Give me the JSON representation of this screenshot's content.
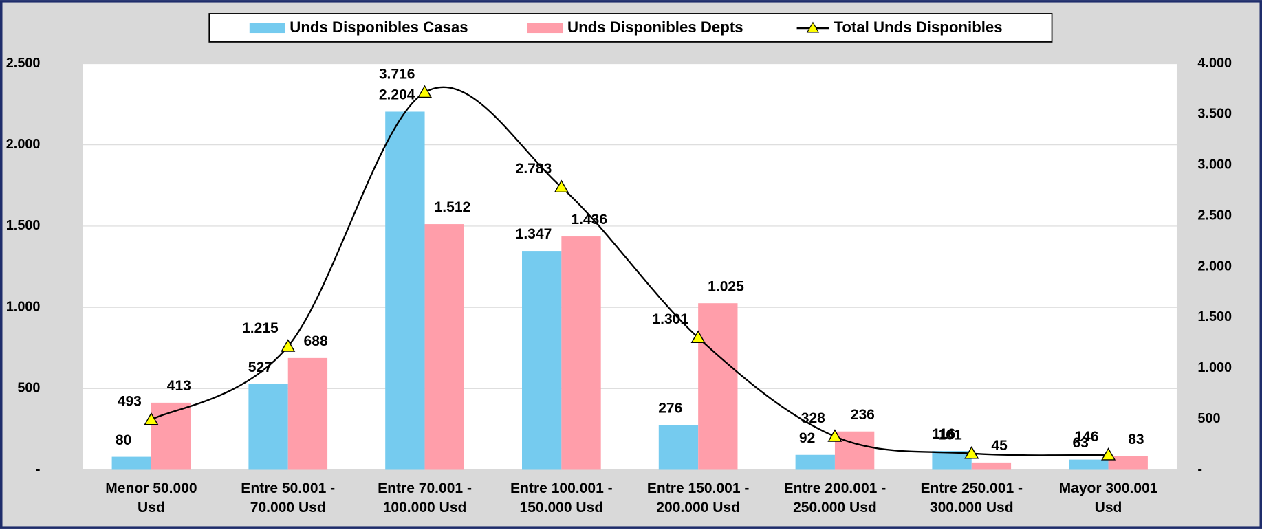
{
  "chart_data": {
    "type": "bar-line",
    "categories": [
      [
        "Menor 50.000",
        "Usd"
      ],
      [
        "Entre  50.001 -",
        "70.000 Usd"
      ],
      [
        "Entre  70.001 -",
        "100.000 Usd"
      ],
      [
        "Entre  100.001 -",
        "150.000 Usd"
      ],
      [
        "Entre 150.001 -",
        "200.000  Usd"
      ],
      [
        "Entre 200.001 -",
        "250.000  Usd"
      ],
      [
        "Entre 250.001 -",
        "300.000  Usd"
      ],
      [
        "Mayor  300.001",
        "Usd"
      ]
    ],
    "series": [
      {
        "name": "Unds Disponibles Casas",
        "type": "bar",
        "color": "#75cbef",
        "values": [
          80,
          527,
          2204,
          1347,
          276,
          92,
          116,
          63
        ],
        "value_labels": [
          "80",
          "527",
          "2.204",
          "1.347",
          "276",
          "92",
          "116",
          "63"
        ]
      },
      {
        "name": "Unds Disponibles Depts",
        "type": "bar",
        "color": "#ff9eaa",
        "values": [
          413,
          688,
          1512,
          1436,
          1025,
          236,
          45,
          83
        ],
        "value_labels": [
          "413",
          "688",
          "1.512",
          "1.436",
          "1.025",
          "236",
          "45",
          "83"
        ]
      },
      {
        "name": "Total Unds Disponibles",
        "type": "line",
        "axis": "y2",
        "color": "#000000",
        "marker_color": "#ffff00",
        "values": [
          493,
          1215,
          3716,
          2783,
          1301,
          328,
          161,
          146
        ],
        "value_labels": [
          "493",
          "1.215",
          "3.716",
          "2.783",
          "1.301",
          "328",
          "161",
          "146"
        ]
      }
    ],
    "ylim": [
      0,
      2500
    ],
    "yticks": [
      {
        "value": 0,
        "label": "-"
      },
      500,
      {
        "value": 1000,
        "label": "1.000"
      },
      {
        "value": 1500,
        "label": "1.500"
      },
      {
        "value": 2000,
        "label": "2.000"
      },
      {
        "value": 2500,
        "label": "2.500"
      }
    ],
    "y2lim": [
      0,
      4000
    ],
    "y2ticks": [
      {
        "value": 0,
        "label": "-"
      },
      500,
      {
        "value": 1000,
        "label": "1.000"
      },
      {
        "value": 1500,
        "label": "1.500"
      },
      {
        "value": 2000,
        "label": "2.000"
      },
      {
        "value": 2500,
        "label": "2.500"
      },
      {
        "value": 3000,
        "label": "3.000"
      },
      {
        "value": 3500,
        "label": "3.500"
      },
      {
        "value": 4000,
        "label": "4.000"
      }
    ],
    "grid": true,
    "legend": "top"
  }
}
